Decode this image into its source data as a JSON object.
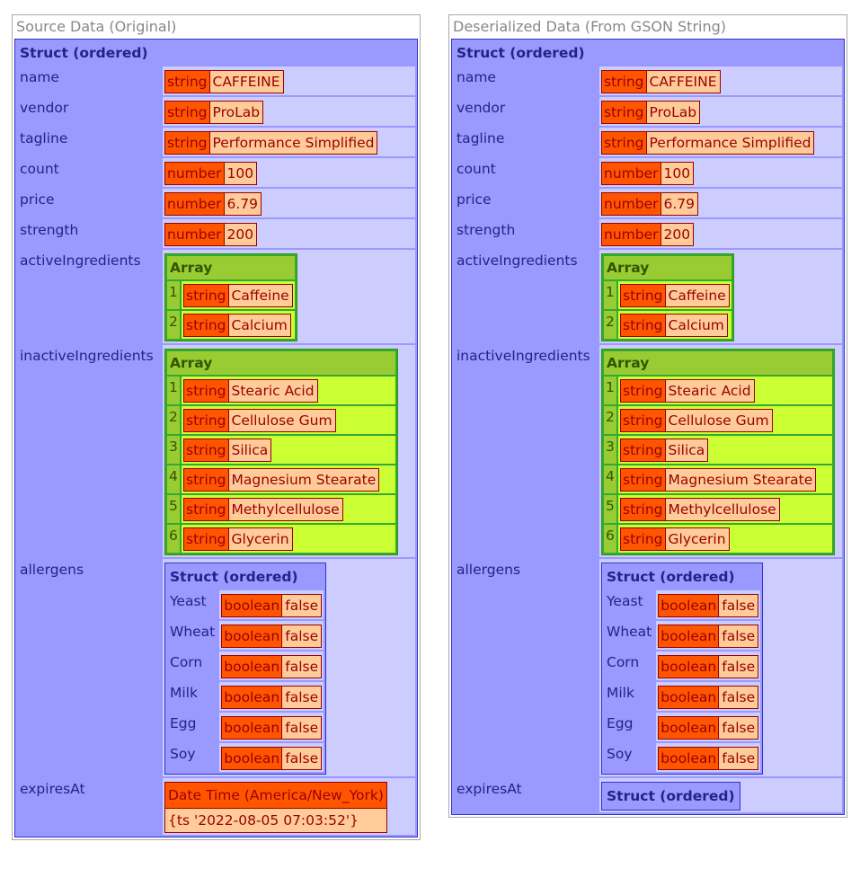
{
  "left": {
    "title": "Source Data (Original)",
    "struct_label": "Struct (ordered)",
    "keys": {
      "name": "name",
      "vendor": "vendor",
      "tagline": "tagline",
      "count": "count",
      "price": "price",
      "strength": "strength",
      "activeIngredients": "activeIngredients",
      "inactiveIngredients": "inactiveIngredients",
      "allergens": "allergens",
      "expiresAt": "expiresAt"
    },
    "name": {
      "type": "string",
      "value": "CAFFEINE"
    },
    "vendor": {
      "type": "string",
      "value": "ProLab"
    },
    "tagline": {
      "type": "string",
      "value": "Performance Simplified"
    },
    "count": {
      "type": "number",
      "value": "100"
    },
    "price": {
      "type": "number",
      "value": "6.79"
    },
    "strength": {
      "type": "number",
      "value": "200"
    },
    "activeIngredients": {
      "label": "Array",
      "items": [
        {
          "index": "1",
          "type": "string",
          "value": "Caffeine"
        },
        {
          "index": "2",
          "type": "string",
          "value": "Calcium"
        }
      ]
    },
    "inactiveIngredients": {
      "label": "Array",
      "items": [
        {
          "index": "1",
          "type": "string",
          "value": "Stearic Acid"
        },
        {
          "index": "2",
          "type": "string",
          "value": "Cellulose Gum"
        },
        {
          "index": "3",
          "type": "string",
          "value": "Silica"
        },
        {
          "index": "4",
          "type": "string",
          "value": "Magnesium Stearate"
        },
        {
          "index": "5",
          "type": "string",
          "value": "Methylcellulose"
        },
        {
          "index": "6",
          "type": "string",
          "value": "Glycerin"
        }
      ]
    },
    "allergens": {
      "label": "Struct (ordered)",
      "items": [
        {
          "key": "Yeast",
          "type": "boolean",
          "value": "false"
        },
        {
          "key": "Wheat",
          "type": "boolean",
          "value": "false"
        },
        {
          "key": "Corn",
          "type": "boolean",
          "value": "false"
        },
        {
          "key": "Milk",
          "type": "boolean",
          "value": "false"
        },
        {
          "key": "Egg",
          "type": "boolean",
          "value": "false"
        },
        {
          "key": "Soy",
          "type": "boolean",
          "value": "false"
        }
      ]
    },
    "expiresAt": {
      "label": "Date Time (America/New_York)",
      "value": "{ts '2022-08-05 07:03:52'}"
    }
  },
  "right": {
    "title": "Deserialized Data (From GSON String)",
    "struct_label": "Struct (ordered)",
    "keys": {
      "name": "name",
      "vendor": "vendor",
      "tagline": "tagline",
      "count": "count",
      "price": "price",
      "strength": "strength",
      "activeIngredients": "activeIngredients",
      "inactiveIngredients": "inactiveIngredients",
      "allergens": "allergens",
      "expiresAt": "expiresAt"
    },
    "name": {
      "type": "string",
      "value": "CAFFEINE"
    },
    "vendor": {
      "type": "string",
      "value": "ProLab"
    },
    "tagline": {
      "type": "string",
      "value": "Performance Simplified"
    },
    "count": {
      "type": "number",
      "value": "100"
    },
    "price": {
      "type": "number",
      "value": "6.79"
    },
    "strength": {
      "type": "number",
      "value": "200"
    },
    "activeIngredients": {
      "label": "Array",
      "items": [
        {
          "index": "1",
          "type": "string",
          "value": "Caffeine"
        },
        {
          "index": "2",
          "type": "string",
          "value": "Calcium"
        }
      ]
    },
    "inactiveIngredients": {
      "label": "Array",
      "items": [
        {
          "index": "1",
          "type": "string",
          "value": "Stearic Acid"
        },
        {
          "index": "2",
          "type": "string",
          "value": "Cellulose Gum"
        },
        {
          "index": "3",
          "type": "string",
          "value": "Silica"
        },
        {
          "index": "4",
          "type": "string",
          "value": "Magnesium Stearate"
        },
        {
          "index": "5",
          "type": "string",
          "value": "Methylcellulose"
        },
        {
          "index": "6",
          "type": "string",
          "value": "Glycerin"
        }
      ]
    },
    "allergens": {
      "label": "Struct (ordered)",
      "items": [
        {
          "key": "Yeast",
          "type": "boolean",
          "value": "false"
        },
        {
          "key": "Wheat",
          "type": "boolean",
          "value": "false"
        },
        {
          "key": "Corn",
          "type": "boolean",
          "value": "false"
        },
        {
          "key": "Milk",
          "type": "boolean",
          "value": "false"
        },
        {
          "key": "Egg",
          "type": "boolean",
          "value": "false"
        },
        {
          "key": "Soy",
          "type": "boolean",
          "value": "false"
        }
      ]
    },
    "expiresAt": {
      "label": "Struct (ordered)"
    }
  }
}
